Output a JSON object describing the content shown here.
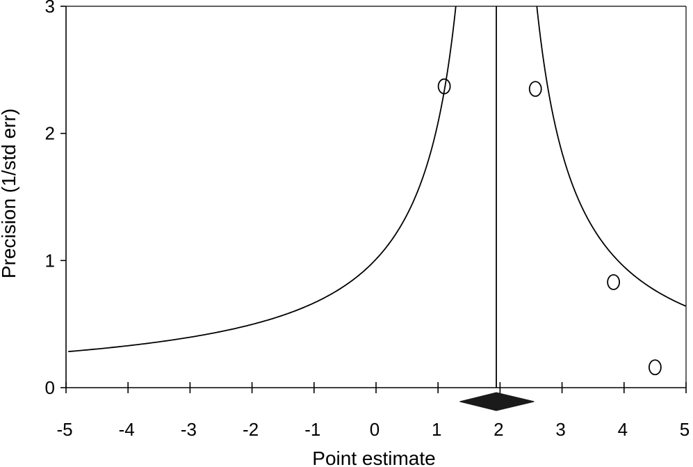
{
  "chart_data": {
    "type": "scatter",
    "subtype": "funnel-plot",
    "title": "",
    "xlabel": "Point estimate",
    "ylabel": "Precision (1/std err)",
    "xlim": [
      -5,
      5
    ],
    "ylim": [
      0,
      3
    ],
    "x_ticks": [
      -5,
      -4,
      -3,
      -2,
      -1,
      0,
      1,
      2,
      3,
      4,
      5
    ],
    "y_ticks": [
      0,
      1,
      2,
      3
    ],
    "grid": false,
    "points": [
      {
        "x": 1.1,
        "y": 2.37
      },
      {
        "x": 2.57,
        "y": 2.35
      },
      {
        "x": 3.83,
        "y": 0.83
      },
      {
        "x": 4.5,
        "y": 0.16
      }
    ],
    "pooled_estimate": 1.94,
    "pooled_ci": [
      1.35,
      2.55
    ],
    "funnel_center": 1.94,
    "funnel_z": 1.96,
    "funnel_precision_range": [
      0.21,
      3
    ],
    "colors": {
      "line": "#000000",
      "diamond": "#1a1a1a",
      "background": "#ffffff"
    }
  }
}
